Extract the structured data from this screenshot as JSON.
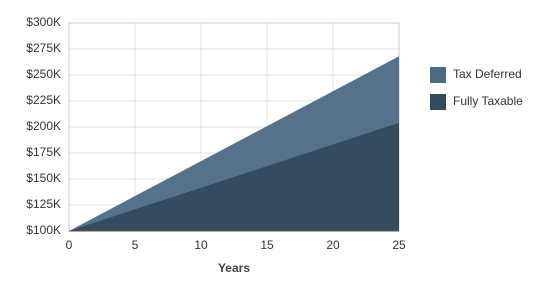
{
  "chart_data": {
    "type": "area",
    "x_label": "Years",
    "x": [
      0,
      5,
      10,
      15,
      20,
      25
    ],
    "series": [
      {
        "name": "Tax Deferred",
        "color": "#4d6a85",
        "values": [
          100000,
          133600,
          167200,
          200800,
          234400,
          268000
        ]
      },
      {
        "name": "Fully Taxable",
        "color": "#344a5e",
        "values": [
          100000,
          120800,
          141600,
          162400,
          183200,
          204000
        ]
      }
    ],
    "xlim": [
      0,
      25
    ],
    "xticks": [
      0,
      5,
      10,
      15,
      20,
      25
    ],
    "ylim": [
      100000,
      300000
    ],
    "yticks": [
      {
        "value": 100000,
        "label": "$100K"
      },
      {
        "value": 125000,
        "label": "$125K"
      },
      {
        "value": 150000,
        "label": "$150K"
      },
      {
        "value": 175000,
        "label": "$175K"
      },
      {
        "value": 200000,
        "label": "$200K"
      },
      {
        "value": 225000,
        "label": "$225K"
      },
      {
        "value": 250000,
        "label": "$250K"
      },
      {
        "value": 275000,
        "label": "$275K"
      },
      {
        "value": 300000,
        "label": "$300K"
      }
    ],
    "grid": true,
    "legend": "right"
  }
}
